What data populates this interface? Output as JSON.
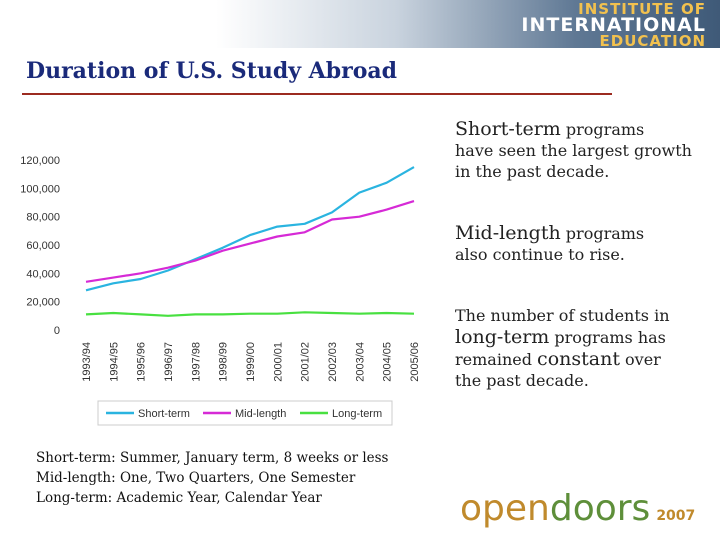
{
  "header": {
    "logo_line1": "INSTITUTE OF",
    "logo_line2": "INTERNATIONAL",
    "logo_line3": "EDUCATION"
  },
  "slide": {
    "title": "Duration of U.S. Study Abroad"
  },
  "notes": [
    {
      "head": "Short-term",
      "rest": " programs",
      "body": "have seen the largest growth in the past decade."
    },
    {
      "head": "Mid-length",
      "rest": " programs",
      "body": "also continue to rise."
    },
    {
      "lead": "The number of students in",
      "head": "long-term",
      "rest": " programs has",
      "mid": "remained ",
      "strong": "constant",
      "tail": " over",
      "end": "the past decade."
    }
  ],
  "definitions": [
    "Short-term: Summer, January term, 8 weeks or less",
    "Mid-length: One, Two Quarters, One Semester",
    "Long-term: Academic Year, Calendar Year"
  ],
  "brand": {
    "open": "open",
    "doors": "doors",
    "year": "2007"
  },
  "chart_data": {
    "type": "line",
    "categories": [
      "1993/94",
      "1994/95",
      "1995/96",
      "1996/97",
      "1997/98",
      "1998/99",
      "1999/00",
      "2000/01",
      "2001/02",
      "2002/03",
      "2003/04",
      "2004/05",
      "2005/06"
    ],
    "yticks": [
      0,
      20000,
      40000,
      60000,
      80000,
      100000,
      120000
    ],
    "ytick_labels": [
      "0",
      "20,000",
      "40,000",
      "60,000",
      "80,000",
      "100,000",
      "120,000"
    ],
    "ylim": [
      0,
      120000
    ],
    "grid": false,
    "legend_position": "bottom",
    "series": [
      {
        "name": "Short-term",
        "color": "#2ab4e0",
        "values": [
          28000,
          33000,
          36000,
          42000,
          50000,
          58000,
          67000,
          73000,
          75000,
          83000,
          97000,
          104000,
          115000
        ]
      },
      {
        "name": "Mid-length",
        "color": "#d62ad6",
        "values": [
          34000,
          37000,
          40000,
          44000,
          49000,
          56000,
          61000,
          66000,
          69000,
          78000,
          80000,
          85000,
          91000
        ]
      },
      {
        "name": "Long-term",
        "color": "#48e040",
        "values": [
          11000,
          12000,
          11000,
          10000,
          11000,
          11000,
          11500,
          11500,
          12500,
          12000,
          11500,
          12000,
          11500
        ]
      }
    ]
  }
}
